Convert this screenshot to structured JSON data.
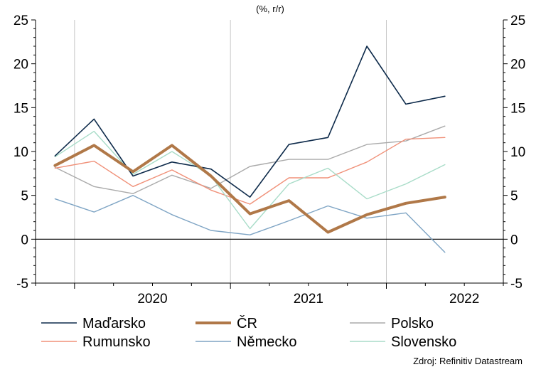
{
  "chart_data": {
    "type": "line",
    "unit_label": "(%, r/r)",
    "source": "Zdroj: Refinitiv Datastream",
    "ylim": [
      -5,
      25
    ],
    "yticks": [
      -5,
      0,
      5,
      10,
      15,
      20,
      25
    ],
    "x_labels": [
      "2020",
      "2021",
      "2022"
    ],
    "quarters": [
      "2019Q4",
      "2020Q1",
      "2020Q2",
      "2020Q3",
      "2020Q4",
      "2021Q1",
      "2021Q2",
      "2021Q3",
      "2021Q4",
      "2022Q1",
      "2022Q2",
      "2022Q3"
    ],
    "grid": "vertical at year boundaries",
    "legend_position": "bottom",
    "series": [
      {
        "name": "Maďarsko",
        "color": "#0d2a4a",
        "width": 1.6,
        "values": [
          9.5,
          13.7,
          7.2,
          8.8,
          8.0,
          4.8,
          10.8,
          11.6,
          22.0,
          15.4,
          16.3,
          null
        ]
      },
      {
        "name": "ČR",
        "color": "#b07848",
        "width": 4.0,
        "values": [
          8.4,
          10.7,
          7.7,
          10.7,
          7.2,
          2.9,
          4.4,
          0.8,
          2.8,
          4.1,
          4.8,
          null
        ]
      },
      {
        "name": "Polsko",
        "color": "#aaaaaa",
        "width": 1.4,
        "values": [
          8.2,
          6.0,
          5.2,
          7.3,
          5.8,
          8.3,
          9.1,
          9.1,
          10.8,
          11.2,
          12.9,
          null
        ]
      },
      {
        "name": "Rumunsko",
        "color": "#f09078",
        "width": 1.4,
        "values": [
          8.1,
          8.9,
          6.0,
          7.9,
          5.6,
          4.0,
          7.0,
          7.0,
          8.8,
          11.4,
          11.6,
          null
        ]
      },
      {
        "name": "Německo",
        "color": "#7ea4c4",
        "width": 1.4,
        "values": [
          4.6,
          3.1,
          5.0,
          2.8,
          1.0,
          0.5,
          2.1,
          3.8,
          2.4,
          3.0,
          -1.5,
          null
        ]
      },
      {
        "name": "Slovensko",
        "color": "#a8dcc8",
        "width": 1.4,
        "values": [
          9.4,
          12.3,
          7.4,
          10.0,
          7.2,
          1.2,
          6.3,
          8.1,
          4.6,
          6.3,
          8.5,
          null
        ]
      }
    ]
  }
}
